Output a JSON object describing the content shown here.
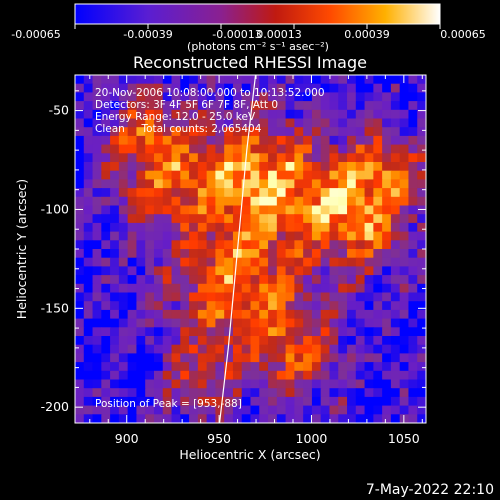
{
  "colorbar": {
    "ticks": [
      "-0.00065",
      "-0.00039",
      "-0.00013",
      "0.00013",
      "0.00039",
      "0.00065"
    ],
    "unit_label": "(photons cm⁻² s⁻¹ asec⁻²)"
  },
  "chart_data": {
    "type": "heatmap",
    "title": "Reconstructed RHESSI Image",
    "xlabel": "Heliocentric X (arcsec)",
    "ylabel": "Heliocentric Y (arcsec)",
    "xlim": [
      872,
      1062
    ],
    "ylim": [
      -208,
      -32
    ],
    "x_ticks": [
      900,
      950,
      1000,
      1050
    ],
    "y_ticks": [
      -50,
      -100,
      -150,
      -200
    ],
    "colorscale": [
      "#0000ff",
      "#6a1fc4",
      "#7a2fa0",
      "#c02a1a",
      "#ff3a00",
      "#ff9a00",
      "#ffffb0",
      "#ffffff"
    ],
    "vmin": -0.00065,
    "vmax": 0.00065,
    "annotations": [
      "20-Nov-2006 10:08:00.000 to 10:13:52.000",
      "Detectors: 3F 4F 5F 6F 7F 8F, Att 0",
      "Energy Range: 12.0 - 25.0 keV",
      "Clean     Total counts: 2,065404"
    ],
    "peak_label": "Position of Peak = [953,-88]",
    "limb_line": [
      [
        950,
        -210
      ],
      [
        955,
        -170
      ],
      [
        960,
        -120
      ],
      [
        965,
        -70
      ],
      [
        970,
        -30
      ]
    ]
  },
  "footer": {
    "timestamp": "7-May-2022 22:10"
  }
}
